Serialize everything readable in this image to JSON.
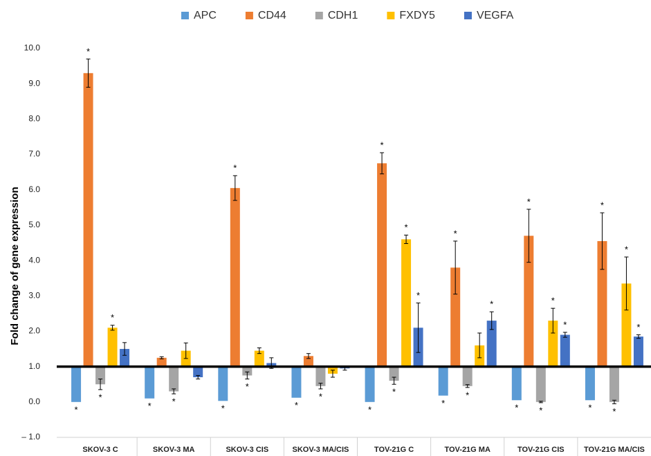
{
  "chart_data": {
    "type": "bar",
    "y_label": "Fold change of gene expression",
    "categories": [
      "SKOV-3 C",
      "SKOV-3 MA",
      "SKOV-3 CIS",
      "SKOV-3 MA/CIS",
      "TOV-21G C",
      "TOV-21G MA",
      "TOV-21G CIS",
      "TOV-21G MA/CIS"
    ],
    "baseline": 1,
    "series": [
      {
        "name": "APC",
        "color": "#5b9bd5",
        "values": [
          0.0,
          0.1,
          0.03,
          0.12,
          0.0,
          0.18,
          0.05,
          0.05
        ],
        "errors": [
          0,
          0,
          0,
          0,
          0,
          0,
          0,
          0
        ],
        "annotations": [
          "*",
          "*",
          "*",
          "*",
          "*",
          "*",
          "*",
          "*"
        ]
      },
      {
        "name": "CD44",
        "color": "#ed7d31",
        "values": [
          9.3,
          1.25,
          6.05,
          1.3,
          6.75,
          3.8,
          4.7,
          4.55
        ],
        "errors": [
          0.4,
          0.03,
          0.35,
          0.07,
          0.3,
          0.75,
          0.75,
          0.8
        ],
        "annotations": [
          "*",
          null,
          "*",
          null,
          "*",
          "*",
          "*",
          "*"
        ]
      },
      {
        "name": "CDH1",
        "color": "#a5a5a5",
        "values": [
          0.5,
          0.3,
          0.75,
          0.45,
          0.6,
          0.45,
          0.0,
          0.0
        ],
        "errors": [
          0.15,
          0.07,
          0.1,
          0.08,
          0.1,
          0.04,
          0.02,
          0.05
        ],
        "annotations": [
          "*",
          "*",
          "*",
          "*",
          "*",
          "*",
          "*",
          "*"
        ]
      },
      {
        "name": "FXDY5",
        "color": "#ffc000",
        "values": [
          2.1,
          1.45,
          1.45,
          0.8,
          4.6,
          1.6,
          2.3,
          3.35
        ],
        "errors": [
          0.07,
          0.22,
          0.08,
          0.1,
          0.12,
          0.35,
          0.35,
          0.75
        ],
        "annotations": [
          "*",
          null,
          null,
          null,
          "*",
          null,
          "*",
          "*"
        ]
      },
      {
        "name": "VEGFA",
        "color": "#4472c4",
        "values": [
          1.5,
          0.7,
          1.1,
          0.95,
          2.1,
          2.3,
          1.9,
          1.85
        ],
        "errors": [
          0.18,
          0.05,
          0.15,
          0.05,
          0.7,
          0.25,
          0.07,
          0.05
        ],
        "annotations": [
          null,
          null,
          null,
          null,
          "*",
          "*",
          "*",
          "*"
        ]
      }
    ],
    "ylim": [
      -1,
      10
    ],
    "yticks": [
      {
        "value": 10,
        "label": "10.0"
      },
      {
        "value": 9,
        "label": "9.0"
      },
      {
        "value": 8,
        "label": "8.0"
      },
      {
        "value": 7,
        "label": "7.0"
      },
      {
        "value": 6,
        "label": "6.0"
      },
      {
        "value": 5,
        "label": "5.0"
      },
      {
        "value": 4,
        "label": "4.0"
      },
      {
        "value": 3,
        "label": "3.0"
      },
      {
        "value": 2,
        "label": "2.0"
      },
      {
        "value": 1,
        "label": "1.0"
      },
      {
        "value": 0,
        "label": "0.0"
      },
      {
        "value": -1,
        "label": "– 1.0"
      }
    ],
    "grid": false,
    "legend": "top"
  }
}
